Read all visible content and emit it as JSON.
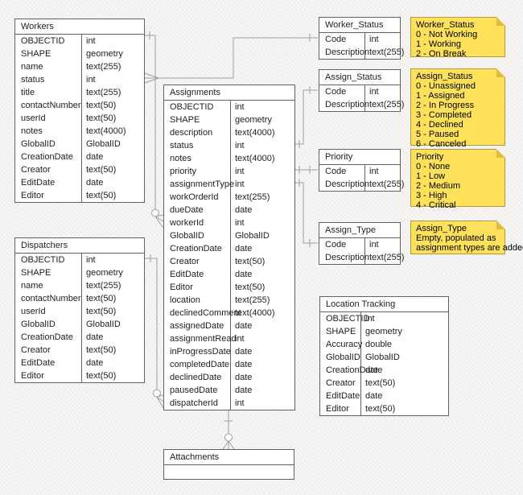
{
  "colors": {
    "background": "#f3f2f0",
    "table_border": "#616161",
    "table_fill": "#ffffff",
    "connector": "#9e9e9e",
    "note_fill": "#ffe15c",
    "note_border": "#b09a3e",
    "note_fold": "#e2bb3e"
  },
  "tables": [
    {
      "id": "workers",
      "title": "Workers",
      "rows": [
        [
          "OBJECTID",
          "int"
        ],
        [
          "SHAPE",
          "geometry"
        ],
        [
          "name",
          "text(255)"
        ],
        [
          "status",
          "int"
        ],
        [
          "title",
          "text(255)"
        ],
        [
          "contactNumber",
          "text(50)"
        ],
        [
          "userId",
          "text(50)"
        ],
        [
          "notes",
          "text(4000)"
        ],
        [
          "GlobalID",
          "GlobalID"
        ],
        [
          "CreationDate",
          "date"
        ],
        [
          "Creator",
          "text(50)"
        ],
        [
          "EditDate",
          "date"
        ],
        [
          "Editor",
          "text(50)"
        ]
      ]
    },
    {
      "id": "dispatchers",
      "title": "Dispatchers",
      "rows": [
        [
          "OBJECTID",
          "int"
        ],
        [
          "SHAPE",
          "geometry"
        ],
        [
          "name",
          "text(255)"
        ],
        [
          "contactNumber",
          "text(50)"
        ],
        [
          "userId",
          "text(50)"
        ],
        [
          "GlobalID",
          "GlobalID"
        ],
        [
          "CreationDate",
          "date"
        ],
        [
          "Creator",
          "text(50)"
        ],
        [
          "EditDate",
          "date"
        ],
        [
          "Editor",
          "text(50)"
        ]
      ]
    },
    {
      "id": "assignments",
      "title": "Assignments",
      "rows": [
        [
          "OBJECTID",
          "int"
        ],
        [
          "SHAPE",
          "geometry"
        ],
        [
          "description",
          "text(4000)"
        ],
        [
          "status",
          "int"
        ],
        [
          "notes",
          "text(4000)"
        ],
        [
          "priority",
          "int"
        ],
        [
          "assignmentType",
          "int"
        ],
        [
          "workOrderId",
          "text(255)"
        ],
        [
          "dueDate",
          "date"
        ],
        [
          "workerId",
          "int"
        ],
        [
          "GlobalID",
          "GlobalID"
        ],
        [
          "CreationDate",
          "date"
        ],
        [
          "Creator",
          "text(50)"
        ],
        [
          "EditDate",
          "date"
        ],
        [
          "Editor",
          "text(50)"
        ],
        [
          "location",
          "text(255)"
        ],
        [
          "declinedComment",
          "text(4000)"
        ],
        [
          "assignedDate",
          "date"
        ],
        [
          "assignmentRead",
          "int"
        ],
        [
          "inProgressDate",
          "date"
        ],
        [
          "completedDate",
          "date"
        ],
        [
          "declinedDate",
          "date"
        ],
        [
          "pausedDate",
          "date"
        ],
        [
          "dispatcherId",
          "int"
        ]
      ]
    },
    {
      "id": "worker-status",
      "title": "Worker_Status",
      "rows": [
        [
          "Code",
          "int"
        ],
        [
          "Description",
          "text(255)"
        ]
      ]
    },
    {
      "id": "assign-status",
      "title": "Assign_Status",
      "rows": [
        [
          "Code",
          "int"
        ],
        [
          "Description",
          "text(255)"
        ]
      ]
    },
    {
      "id": "priority",
      "title": "Priority",
      "rows": [
        [
          "Code",
          "int"
        ],
        [
          "Description",
          "text(255)"
        ]
      ]
    },
    {
      "id": "assign-type",
      "title": "Assign_Type",
      "rows": [
        [
          "Code",
          "int"
        ],
        [
          "Description",
          "text(255)"
        ]
      ]
    },
    {
      "id": "location-tracking",
      "title": "Location Tracking",
      "rows": [
        [
          "OBJECTID",
          "int"
        ],
        [
          "SHAPE",
          "geometry"
        ],
        [
          "Accuracy",
          "double"
        ],
        [
          "GlobalID",
          "GlobalID"
        ],
        [
          "CreationDate",
          "date"
        ],
        [
          "Creator",
          "text(50)"
        ],
        [
          "EditDate",
          "date"
        ],
        [
          "Editor",
          "text(50)"
        ]
      ]
    },
    {
      "id": "attachments",
      "title": "Attachments",
      "rows": []
    }
  ],
  "notes": [
    {
      "title": "Worker_Status",
      "lines": [
        "0 - Not Working",
        "1 - Working",
        "2 - On Break"
      ]
    },
    {
      "title": "Assign_Status",
      "lines": [
        "0 - Unassigned",
        "1 - Assigned",
        "2 - In Progress",
        "3 - Completed",
        "4 - Declined",
        "5 - Paused",
        "6 - Canceled"
      ]
    },
    {
      "title": "Priority",
      "lines": [
        "0 - None",
        "1 - Low",
        "2 - Medium",
        "3 - High",
        "4 - Critical"
      ]
    },
    {
      "title": "Assign_Type",
      "lines": [
        "Empty, populated as",
        "assignment types are added"
      ]
    }
  ],
  "relationships": [
    {
      "from": "Workers.OBJECTID",
      "to": "Assignments.workerId",
      "from_end": "one",
      "to_end": "zero-or-many"
    },
    {
      "from": "Worker_Status.Code",
      "to": "Workers.status",
      "from_end": "one",
      "to_end": "many"
    },
    {
      "from": "Assign_Status.Code",
      "to": "Assignments.status",
      "from_end": "one",
      "to_end": "one"
    },
    {
      "from": "Priority.Code",
      "to": "Assignments.priority",
      "from_end": "one",
      "to_end": "one"
    },
    {
      "from": "Assign_Type.Code",
      "to": "Assignments.assignmentType",
      "from_end": "one",
      "to_end": "one"
    },
    {
      "from": "Dispatchers.OBJECTID",
      "to": "Assignments.dispatcherId",
      "from_end": "one",
      "to_end": "zero-or-many"
    },
    {
      "from": "Assignments",
      "to": "Attachments",
      "from_end": "one",
      "to_end": "zero-or-many"
    }
  ]
}
